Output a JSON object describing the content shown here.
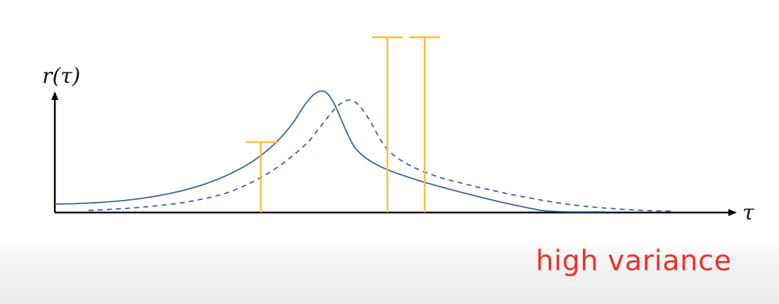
{
  "labels": {
    "y_axis": "r(τ)",
    "x_axis": "τ"
  },
  "caption": "high variance",
  "colors": {
    "curve": "#3b5d98",
    "samples": "#f5c12e",
    "axis": "#000000",
    "caption": "#e8332e"
  },
  "elements": {
    "solid_curve": "r(τ) under distribution 1",
    "dashed_curve": "r(τ) under distribution 2",
    "sample_markers": 3
  }
}
